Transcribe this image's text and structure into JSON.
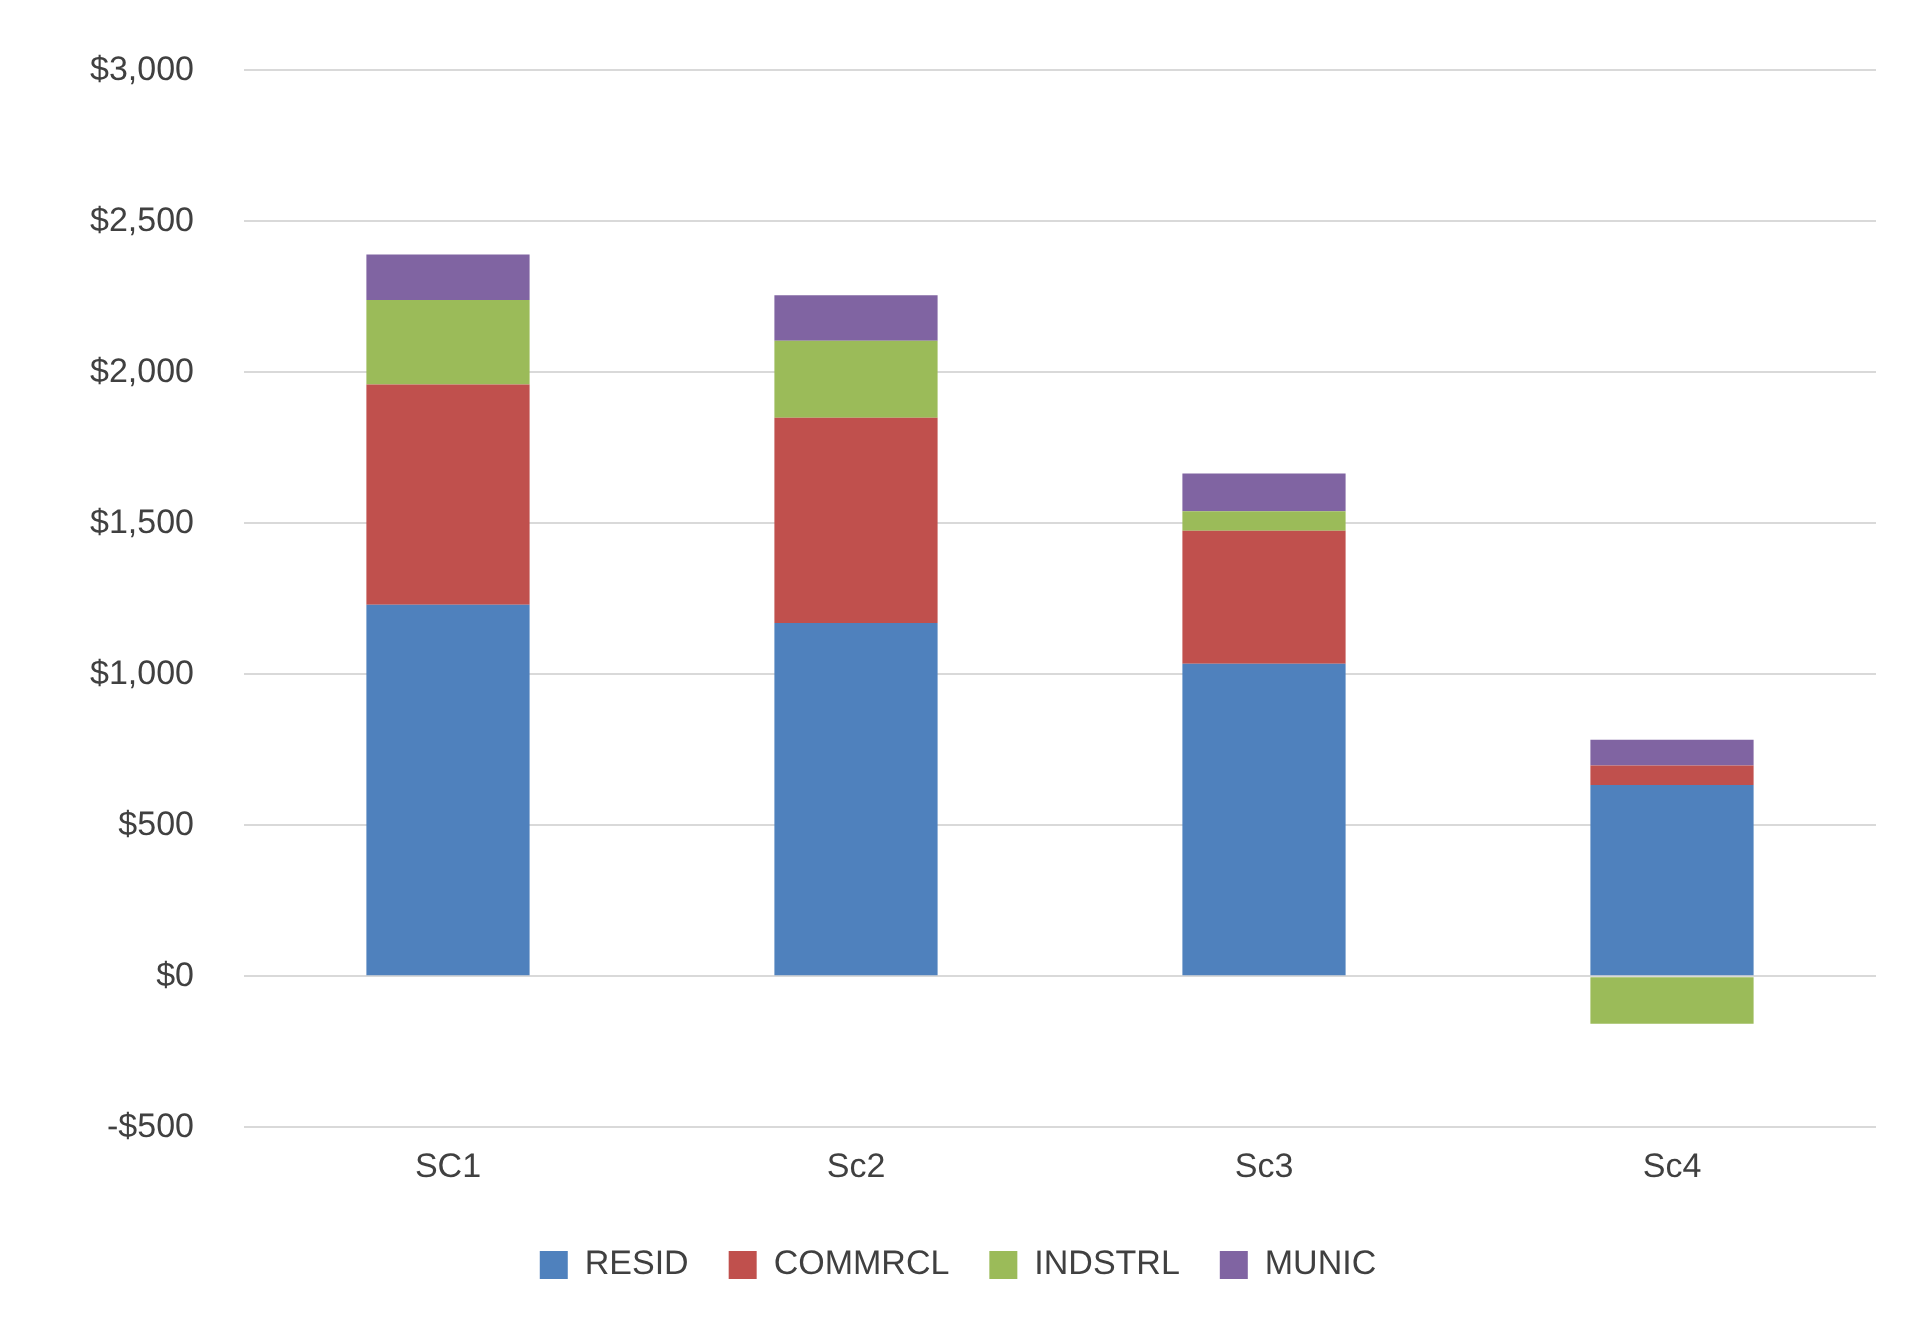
{
  "chart_data": {
    "type": "bar",
    "stacked": true,
    "categories": [
      "SC1",
      "Sc2",
      "Sc3",
      "Sc4"
    ],
    "series": [
      {
        "name": "RESID",
        "color": "#4f81bd",
        "values": [
          1230,
          1170,
          1035,
          633
        ]
      },
      {
        "name": "COMMRCL",
        "color": "#c0504d",
        "values": [
          730,
          680,
          440,
          65
        ]
      },
      {
        "name": "INDSTRL",
        "color": "#9bbb59",
        "values": [
          280,
          255,
          65,
          -157
        ]
      },
      {
        "name": "MUNIC",
        "color": "#8064a2",
        "values": [
          150,
          150,
          125,
          85
        ]
      }
    ],
    "ylim": [
      -500,
      3000
    ],
    "yticks": [
      {
        "value": -500,
        "label": "-$500"
      },
      {
        "value": 0,
        "label": "$0"
      },
      {
        "value": 500,
        "label": "$500"
      },
      {
        "value": 1000,
        "label": "$1,000"
      },
      {
        "value": 1500,
        "label": "$1,500"
      },
      {
        "value": 2000,
        "label": "$2,000"
      },
      {
        "value": 2500,
        "label": "$2,500"
      },
      {
        "value": 3000,
        "label": "$3,000"
      }
    ],
    "grid": "y",
    "legend": "bottom"
  }
}
